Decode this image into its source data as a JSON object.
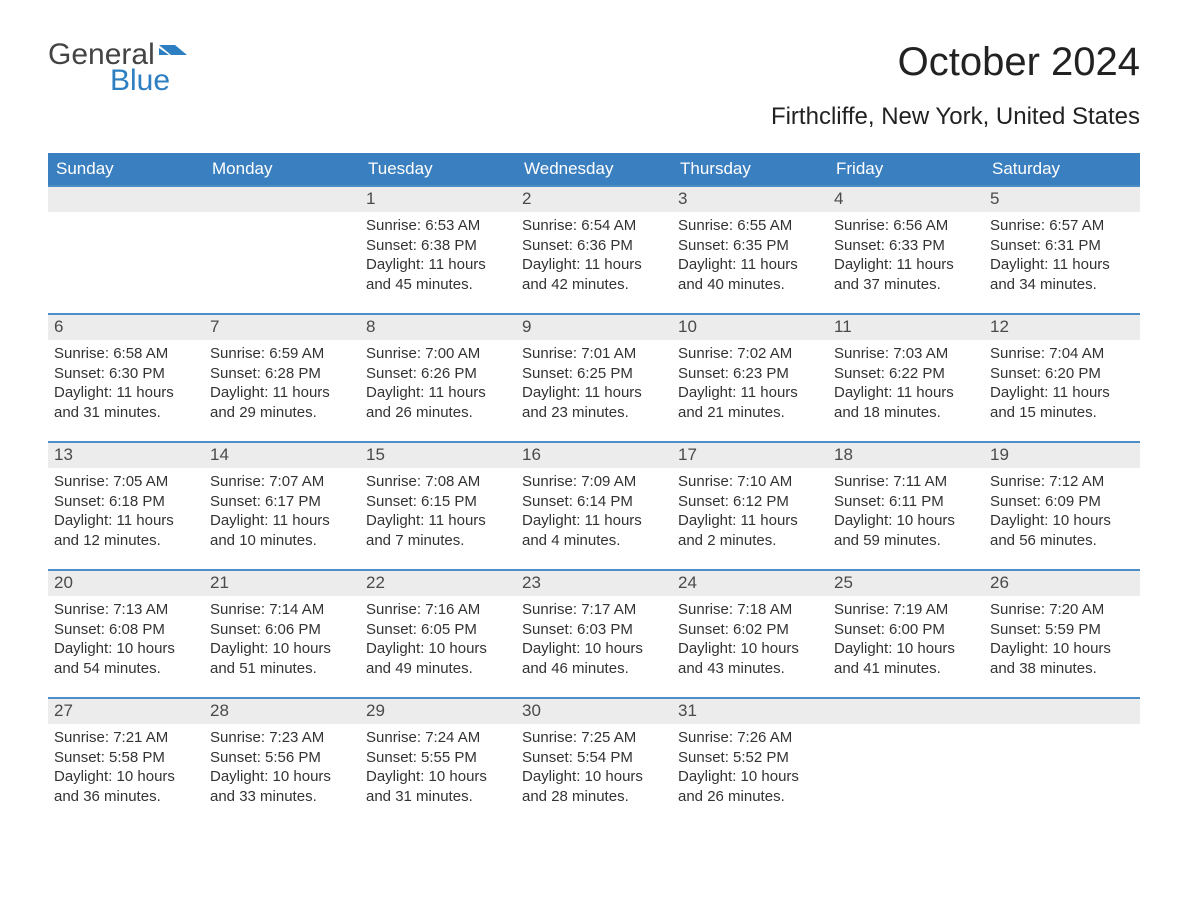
{
  "logo": {
    "word1": "General",
    "word2": "Blue",
    "flag_color": "#2d7fc1"
  },
  "title": "October 2024",
  "location": "Firthcliffe, New York, United States",
  "colors": {
    "header_bg": "#3a7fc0",
    "header_text": "#ffffff",
    "daynum_bg": "#ececec",
    "cell_border_top": "#4f8dc6",
    "body_text": "#333333",
    "logo_blue": "#2d7fc1",
    "logo_gray": "#444444",
    "background": "#ffffff"
  },
  "typography": {
    "title_fontsize": 40,
    "location_fontsize": 24,
    "weekday_fontsize": 17,
    "daynum_fontsize": 17,
    "body_fontsize": 15,
    "font_family": "Arial"
  },
  "layout": {
    "columns": 7,
    "rows": 5,
    "leading_blank_cells": 2,
    "trailing_blank_cells": 2
  },
  "weekdays": [
    "Sunday",
    "Monday",
    "Tuesday",
    "Wednesday",
    "Thursday",
    "Friday",
    "Saturday"
  ],
  "labels": {
    "sunrise": "Sunrise:",
    "sunset": "Sunset:",
    "daylight": "Daylight:"
  },
  "days": [
    {
      "n": "1",
      "sunrise": "6:53 AM",
      "sunset": "6:38 PM",
      "daylight": "11 hours and 45 minutes."
    },
    {
      "n": "2",
      "sunrise": "6:54 AM",
      "sunset": "6:36 PM",
      "daylight": "11 hours and 42 minutes."
    },
    {
      "n": "3",
      "sunrise": "6:55 AM",
      "sunset": "6:35 PM",
      "daylight": "11 hours and 40 minutes."
    },
    {
      "n": "4",
      "sunrise": "6:56 AM",
      "sunset": "6:33 PM",
      "daylight": "11 hours and 37 minutes."
    },
    {
      "n": "5",
      "sunrise": "6:57 AM",
      "sunset": "6:31 PM",
      "daylight": "11 hours and 34 minutes."
    },
    {
      "n": "6",
      "sunrise": "6:58 AM",
      "sunset": "6:30 PM",
      "daylight": "11 hours and 31 minutes."
    },
    {
      "n": "7",
      "sunrise": "6:59 AM",
      "sunset": "6:28 PM",
      "daylight": "11 hours and 29 minutes."
    },
    {
      "n": "8",
      "sunrise": "7:00 AM",
      "sunset": "6:26 PM",
      "daylight": "11 hours and 26 minutes."
    },
    {
      "n": "9",
      "sunrise": "7:01 AM",
      "sunset": "6:25 PM",
      "daylight": "11 hours and 23 minutes."
    },
    {
      "n": "10",
      "sunrise": "7:02 AM",
      "sunset": "6:23 PM",
      "daylight": "11 hours and 21 minutes."
    },
    {
      "n": "11",
      "sunrise": "7:03 AM",
      "sunset": "6:22 PM",
      "daylight": "11 hours and 18 minutes."
    },
    {
      "n": "12",
      "sunrise": "7:04 AM",
      "sunset": "6:20 PM",
      "daylight": "11 hours and 15 minutes."
    },
    {
      "n": "13",
      "sunrise": "7:05 AM",
      "sunset": "6:18 PM",
      "daylight": "11 hours and 12 minutes."
    },
    {
      "n": "14",
      "sunrise": "7:07 AM",
      "sunset": "6:17 PM",
      "daylight": "11 hours and 10 minutes."
    },
    {
      "n": "15",
      "sunrise": "7:08 AM",
      "sunset": "6:15 PM",
      "daylight": "11 hours and 7 minutes."
    },
    {
      "n": "16",
      "sunrise": "7:09 AM",
      "sunset": "6:14 PM",
      "daylight": "11 hours and 4 minutes."
    },
    {
      "n": "17",
      "sunrise": "7:10 AM",
      "sunset": "6:12 PM",
      "daylight": "11 hours and 2 minutes."
    },
    {
      "n": "18",
      "sunrise": "7:11 AM",
      "sunset": "6:11 PM",
      "daylight": "10 hours and 59 minutes."
    },
    {
      "n": "19",
      "sunrise": "7:12 AM",
      "sunset": "6:09 PM",
      "daylight": "10 hours and 56 minutes."
    },
    {
      "n": "20",
      "sunrise": "7:13 AM",
      "sunset": "6:08 PM",
      "daylight": "10 hours and 54 minutes."
    },
    {
      "n": "21",
      "sunrise": "7:14 AM",
      "sunset": "6:06 PM",
      "daylight": "10 hours and 51 minutes."
    },
    {
      "n": "22",
      "sunrise": "7:16 AM",
      "sunset": "6:05 PM",
      "daylight": "10 hours and 49 minutes."
    },
    {
      "n": "23",
      "sunrise": "7:17 AM",
      "sunset": "6:03 PM",
      "daylight": "10 hours and 46 minutes."
    },
    {
      "n": "24",
      "sunrise": "7:18 AM",
      "sunset": "6:02 PM",
      "daylight": "10 hours and 43 minutes."
    },
    {
      "n": "25",
      "sunrise": "7:19 AM",
      "sunset": "6:00 PM",
      "daylight": "10 hours and 41 minutes."
    },
    {
      "n": "26",
      "sunrise": "7:20 AM",
      "sunset": "5:59 PM",
      "daylight": "10 hours and 38 minutes."
    },
    {
      "n": "27",
      "sunrise": "7:21 AM",
      "sunset": "5:58 PM",
      "daylight": "10 hours and 36 minutes."
    },
    {
      "n": "28",
      "sunrise": "7:23 AM",
      "sunset": "5:56 PM",
      "daylight": "10 hours and 33 minutes."
    },
    {
      "n": "29",
      "sunrise": "7:24 AM",
      "sunset": "5:55 PM",
      "daylight": "10 hours and 31 minutes."
    },
    {
      "n": "30",
      "sunrise": "7:25 AM",
      "sunset": "5:54 PM",
      "daylight": "10 hours and 28 minutes."
    },
    {
      "n": "31",
      "sunrise": "7:26 AM",
      "sunset": "5:52 PM",
      "daylight": "10 hours and 26 minutes."
    }
  ]
}
